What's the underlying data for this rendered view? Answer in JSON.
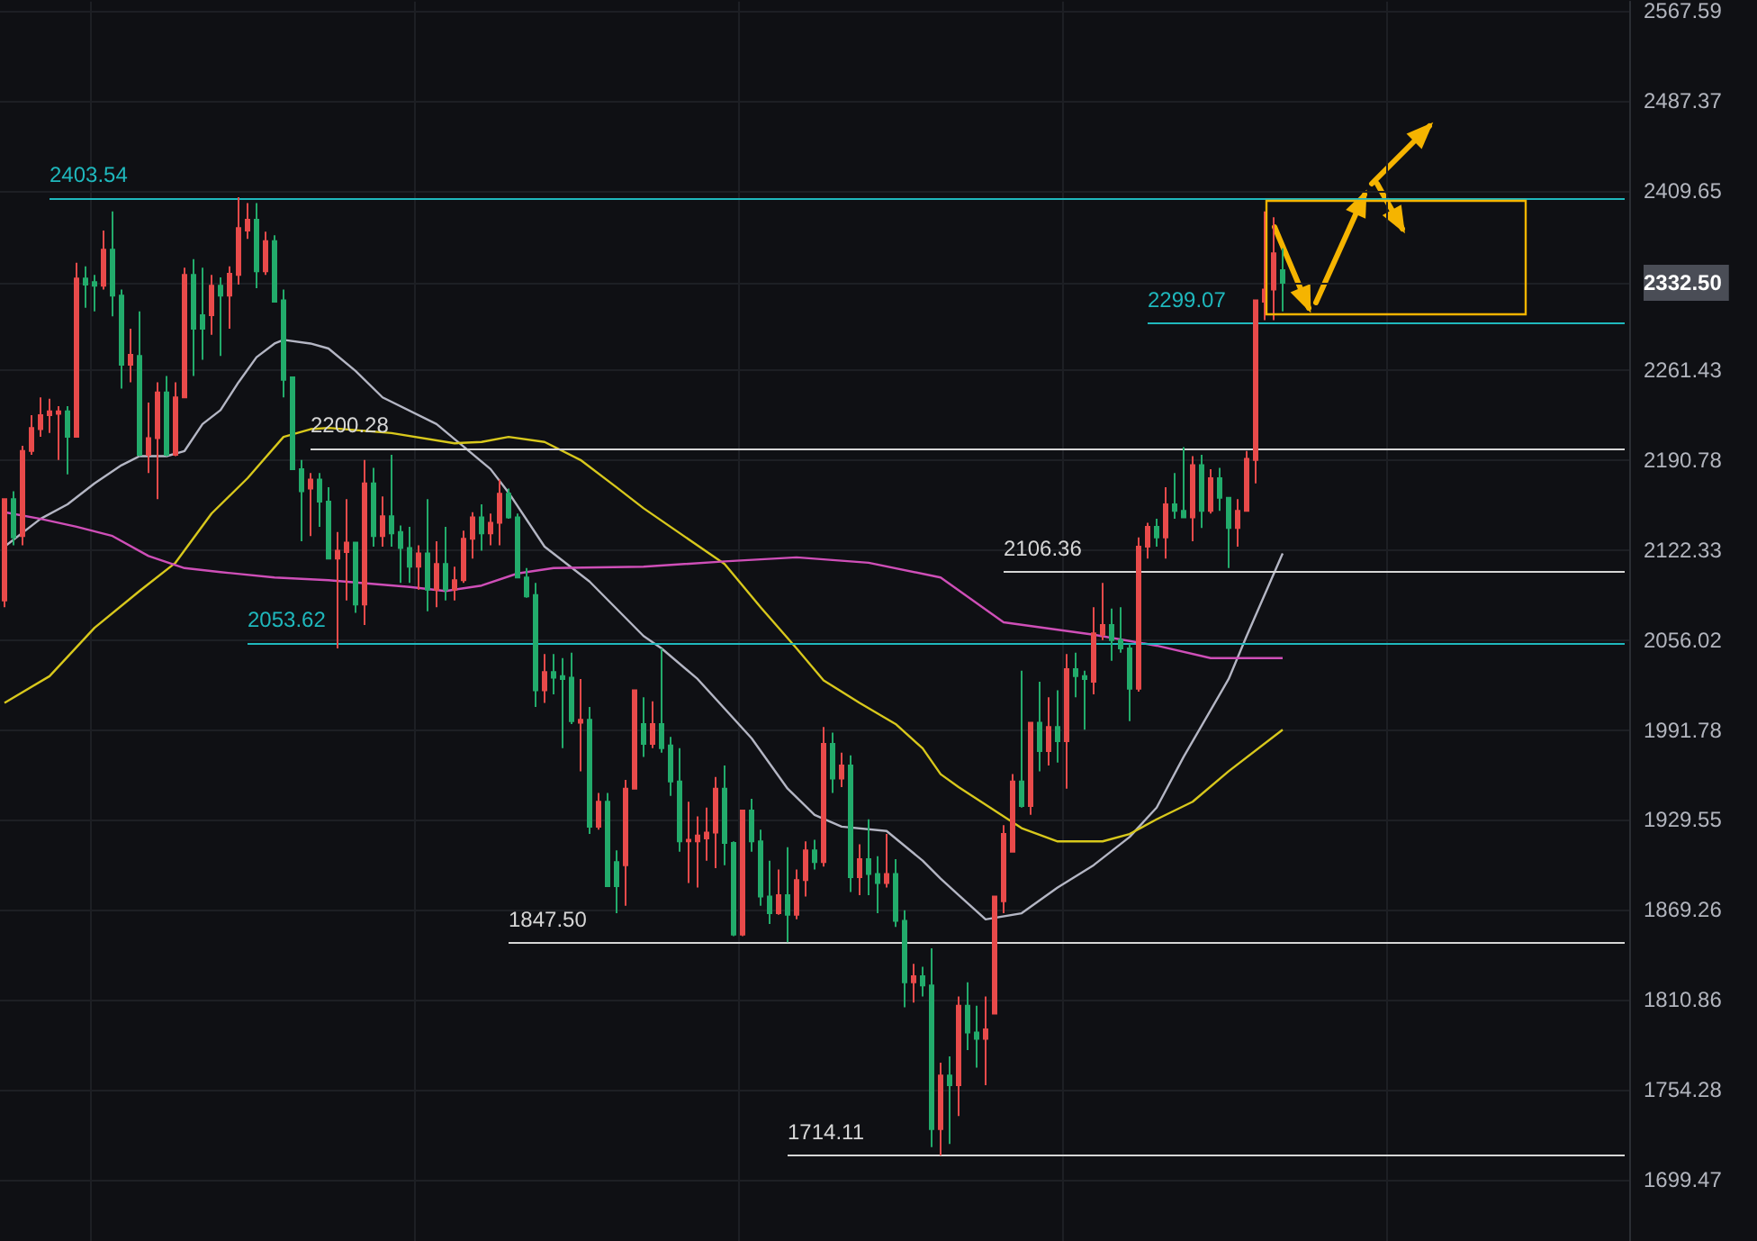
{
  "chart_data": {
    "type": "candlestick",
    "categories": [
      null,
      null,
      null,
      null,
      null,
      null,
      null,
      null,
      null,
      null,
      null,
      null,
      null,
      null,
      null,
      null,
      null,
      null,
      null,
      null,
      null,
      null,
      null,
      null,
      null,
      null,
      null,
      null,
      null,
      null,
      null,
      null,
      null,
      null,
      null,
      null,
      null,
      null,
      null,
      null,
      null,
      null,
      null,
      null,
      null,
      null,
      null,
      null,
      null,
      null,
      null,
      null,
      null,
      null,
      null,
      null,
      null,
      null,
      null,
      null,
      null,
      null,
      null,
      null,
      null,
      null,
      null,
      null,
      null,
      null,
      null,
      null,
      null,
      null,
      null,
      null,
      null,
      null,
      null,
      null,
      null,
      null,
      null,
      null,
      null,
      null,
      null,
      null,
      null,
      null,
      null,
      null,
      null,
      null,
      null,
      null,
      null,
      null,
      null,
      null,
      null,
      null,
      null,
      null,
      null,
      null,
      null,
      null,
      null,
      null,
      null,
      null,
      null,
      null,
      null,
      null,
      null,
      null,
      null,
      null,
      null,
      null,
      null,
      null,
      null,
      null,
      null,
      null,
      null,
      null,
      null,
      null,
      null,
      null,
      null,
      null,
      null,
      null,
      null,
      null,
      null,
      null,
      null,
      null,
      null,
      null,
      null,
      null,
      null,
      null,
      null,
      null,
      null,
      null,
      null,
      null,
      null,
      null,
      null,
      null,
      null,
      null,
      null,
      null,
      null,
      null,
      null,
      null,
      null,
      null,
      null,
      null,
      null,
      null,
      null,
      null,
      null,
      null,
      null,
      null,
      null
    ],
    "ohlc": [
      [
        2085,
        2161,
        2080,
        2161
      ],
      [
        2161,
        2167,
        2126,
        2132
      ],
      [
        2133,
        2202,
        2126,
        2198
      ],
      [
        2198,
        2226,
        2195,
        2216
      ],
      [
        2215,
        2240,
        2209,
        2226
      ],
      [
        2226,
        2239,
        2212,
        2229
      ],
      [
        2227,
        2233,
        2191,
        2229
      ],
      [
        2229,
        2233,
        2180,
        2209
      ],
      [
        2209,
        2349,
        2209,
        2336
      ],
      [
        2336,
        2346,
        2312,
        2331
      ],
      [
        2333,
        2339,
        2309,
        2330
      ],
      [
        2330,
        2376,
        2327,
        2360
      ],
      [
        2360,
        2392,
        2305,
        2322
      ],
      [
        2322,
        2327,
        2247,
        2266
      ],
      [
        2266,
        2295,
        2252,
        2274
      ],
      [
        2273,
        2309,
        2194,
        2195
      ],
      [
        2195,
        2236,
        2181,
        2208
      ],
      [
        2208,
        2252,
        2161,
        2244
      ],
      [
        2244,
        2257,
        2194,
        2195
      ],
      [
        2195,
        2252,
        2194,
        2240
      ],
      [
        2240,
        2345,
        2240,
        2339
      ],
      [
        2339,
        2352,
        2257,
        2295
      ],
      [
        2306,
        2345,
        2270,
        2295
      ],
      [
        2306,
        2339,
        2290,
        2330
      ],
      [
        2330,
        2337,
        2273,
        2322
      ],
      [
        2322,
        2346,
        2295,
        2340
      ],
      [
        2339,
        2404,
        2331,
        2378
      ],
      [
        2376,
        2399,
        2369,
        2385
      ],
      [
        2385,
        2399,
        2328,
        2342
      ],
      [
        2342,
        2375,
        2339,
        2367
      ],
      [
        2367,
        2372,
        2317,
        2317
      ],
      [
        2318,
        2327,
        2240,
        2254
      ],
      [
        2256,
        2256,
        2184,
        2184
      ],
      [
        2184,
        2191,
        2129,
        2167
      ],
      [
        2169,
        2181,
        2133,
        2176
      ],
      [
        2176,
        2181,
        2140,
        2159
      ],
      [
        2159,
        2170,
        2116,
        2116
      ],
      [
        2116,
        2136,
        2050,
        2122
      ],
      [
        2121,
        2161,
        2085,
        2128
      ],
      [
        2128,
        2128,
        2076,
        2082
      ],
      [
        2082,
        2191,
        2067,
        2173
      ],
      [
        2173,
        2185,
        2125,
        2133
      ],
      [
        2133,
        2163,
        2125,
        2148
      ],
      [
        2148,
        2195,
        2125,
        2135
      ],
      [
        2136,
        2141,
        2098,
        2124
      ],
      [
        2124,
        2140,
        2098,
        2110
      ],
      [
        2110,
        2126,
        2093,
        2120
      ],
      [
        2120,
        2161,
        2077,
        2093
      ],
      [
        2093,
        2129,
        2080,
        2112
      ],
      [
        2112,
        2140,
        2085,
        2093
      ],
      [
        2093,
        2110,
        2085,
        2100
      ],
      [
        2100,
        2137,
        2098,
        2131
      ],
      [
        2131,
        2151,
        2116,
        2147
      ],
      [
        2147,
        2157,
        2122,
        2135
      ],
      [
        2135,
        2150,
        2126,
        2143
      ],
      [
        2143,
        2176,
        2126,
        2165
      ],
      [
        2165,
        2169,
        2146,
        2147
      ],
      [
        2147,
        2150,
        2102,
        2102
      ],
      [
        2102,
        2109,
        2087,
        2088
      ],
      [
        2089,
        2098,
        2008,
        2020
      ],
      [
        2020,
        2046,
        2011,
        2033
      ],
      [
        2033,
        2046,
        2017,
        2029
      ],
      [
        2030,
        2043,
        1979,
        2028
      ],
      [
        2029,
        2047,
        1996,
        1998
      ],
      [
        1997,
        2028,
        1963,
        1999
      ],
      [
        1999,
        2008,
        1920,
        1925
      ],
      [
        1925,
        1948,
        1923,
        1942
      ],
      [
        1942,
        1948,
        1885,
        1885
      ],
      [
        1901,
        1909,
        1867,
        1885
      ],
      [
        1899,
        1957,
        1872,
        1951
      ],
      [
        1951,
        2020,
        1951,
        2020
      ],
      [
        1996,
        2015,
        1973,
        1982
      ],
      [
        1982,
        2012,
        1979,
        1996
      ],
      [
        1996,
        2050,
        1976,
        1979
      ],
      [
        1981,
        1987,
        1946,
        1956
      ],
      [
        1956,
        1979,
        1908,
        1915
      ],
      [
        1915,
        1942,
        1887,
        1916
      ],
      [
        1915,
        1932,
        1884,
        1919
      ],
      [
        1917,
        1938,
        1902,
        1921
      ],
      [
        1921,
        1959,
        1897,
        1951
      ],
      [
        1951,
        1967,
        1899,
        1914
      ],
      [
        1914,
        1915,
        1852,
        1853
      ],
      [
        1853,
        1936,
        1852,
        1936
      ],
      [
        1936,
        1944,
        1908,
        1915
      ],
      [
        1915,
        1923,
        1872,
        1878
      ],
      [
        1878,
        1902,
        1860,
        1867
      ],
      [
        1867,
        1896,
        1866,
        1879
      ],
      [
        1879,
        1911,
        1848,
        1866
      ],
      [
        1866,
        1896,
        1863,
        1889
      ],
      [
        1889,
        1915,
        1878,
        1909
      ],
      [
        1909,
        1916,
        1896,
        1901
      ],
      [
        1901,
        1994,
        1898,
        1982
      ],
      [
        1982,
        1990,
        1948,
        1958
      ],
      [
        1958,
        1976,
        1952,
        1967
      ],
      [
        1967,
        1974,
        1881,
        1891
      ],
      [
        1891,
        1913,
        1879,
        1903
      ],
      [
        1903,
        1930,
        1879,
        1893
      ],
      [
        1893,
        1905,
        1867,
        1887
      ],
      [
        1887,
        1920,
        1884,
        1893
      ],
      [
        1893,
        1903,
        1858,
        1862
      ],
      [
        1862,
        1869,
        1806,
        1822
      ],
      [
        1822,
        1834,
        1809,
        1826
      ],
      [
        1826,
        1832,
        1813,
        1820
      ],
      [
        1820,
        1844,
        1719,
        1730
      ],
      [
        1730,
        1771,
        1714,
        1763
      ],
      [
        1763,
        1775,
        1721,
        1757
      ],
      [
        1757,
        1813,
        1738,
        1807
      ],
      [
        1807,
        1822,
        1779,
        1790
      ],
      [
        1790,
        1807,
        1768,
        1786
      ],
      [
        1786,
        1813,
        1757,
        1792
      ],
      [
        1802,
        1878,
        1802,
        1878
      ],
      [
        1875,
        1926,
        1867,
        1920
      ],
      [
        1908,
        1961,
        1908,
        1956
      ],
      [
        1956,
        2034,
        1938,
        1939
      ],
      [
        1939,
        1997,
        1933,
        1997
      ],
      [
        1997,
        2026,
        1963,
        1977
      ],
      [
        1977,
        2015,
        1967,
        1994
      ],
      [
        1994,
        2020,
        1969,
        1984
      ],
      [
        1984,
        2046,
        1951,
        2035
      ],
      [
        2035,
        2047,
        2015,
        2030
      ],
      [
        2030,
        2034,
        1992,
        2028
      ],
      [
        2026,
        2080,
        2017,
        2061
      ],
      [
        2060,
        2098,
        2056,
        2067
      ],
      [
        2067,
        2079,
        2041,
        2056
      ],
      [
        2056,
        2080,
        2047,
        2050
      ],
      [
        2050,
        2053,
        1998,
        2021
      ],
      [
        2021,
        2132,
        2019,
        2125
      ],
      [
        2125,
        2143,
        2116,
        2140
      ],
      [
        2140,
        2146,
        2125,
        2132
      ],
      [
        2132,
        2170,
        2116,
        2157
      ],
      [
        2157,
        2181,
        2146,
        2152
      ],
      [
        2152,
        2201,
        2147,
        2147
      ],
      [
        2147,
        2194,
        2129,
        2187
      ],
      [
        2187,
        2195,
        2139,
        2152
      ],
      [
        2152,
        2184,
        2150,
        2177
      ],
      [
        2177,
        2185,
        2152,
        2162
      ],
      [
        2162,
        2162,
        2109,
        2139
      ],
      [
        2139,
        2161,
        2125,
        2152
      ],
      [
        2152,
        2198,
        2152,
        2192
      ],
      [
        2191,
        2318,
        2173,
        2318
      ],
      [
        2317,
        2392,
        2302,
        2327
      ],
      [
        2327,
        2387,
        2302,
        2357
      ],
      [
        2343,
        2361,
        2309,
        2332.5
      ],
      null,
      null,
      null,
      null,
      null,
      null,
      null,
      null,
      null,
      null,
      null,
      null,
      null,
      null,
      null,
      null,
      null,
      null,
      null,
      null,
      null,
      null,
      null,
      null,
      null,
      null,
      null,
      null,
      null,
      null,
      null,
      null,
      null,
      null,
      null,
      null,
      null,
      null
    ],
    "colors": [
      "#e84a4a",
      "#22ab6b",
      "#e84a4a",
      "#e84a4a",
      "#e84a4a",
      "#e84a4a",
      "#e84a4a",
      "#22ab6b",
      "#e84a4a",
      "#22ab6b",
      "#22ab6b",
      "#e84a4a",
      "#22ab6b",
      "#22ab6b",
      "#e84a4a",
      "#22ab6b",
      "#e84a4a",
      "#e84a4a",
      "#22ab6b",
      "#e84a4a",
      "#e84a4a",
      "#22ab6b",
      "#22ab6b",
      "#e84a4a",
      "#22ab6b",
      "#e84a4a",
      "#e84a4a",
      "#e84a4a",
      "#22ab6b",
      "#e84a4a",
      "#22ab6b",
      "#22ab6b",
      "#22ab6b",
      "#22ab6b",
      "#e84a4a",
      "#22ab6b",
      "#22ab6b",
      "#e84a4a",
      "#e84a4a",
      "#22ab6b",
      "#e84a4a",
      "#22ab6b",
      "#e84a4a",
      "#22ab6b",
      "#22ab6b",
      "#22ab6b",
      "#e84a4a",
      "#22ab6b",
      "#e84a4a",
      "#22ab6b",
      "#e84a4a",
      "#e84a4a",
      "#e84a4a",
      "#22ab6b",
      "#e84a4a",
      "#e84a4a",
      "#22ab6b",
      "#22ab6b",
      "#22ab6b",
      "#22ab6b",
      "#e84a4a",
      "#22ab6b",
      "#22ab6b",
      "#22ab6b",
      "#e84a4a",
      "#22ab6b",
      "#e84a4a",
      "#22ab6b",
      "#22ab6b",
      "#e84a4a",
      "#e84a4a",
      "#22ab6b",
      "#e84a4a",
      "#22ab6b",
      "#22ab6b",
      "#22ab6b",
      "#e84a4a",
      "#e84a4a",
      "#e84a4a",
      "#e84a4a",
      "#22ab6b",
      "#22ab6b",
      "#e84a4a",
      "#22ab6b",
      "#22ab6b",
      "#22ab6b",
      "#e84a4a",
      "#22ab6b",
      "#e84a4a",
      "#e84a4a",
      "#22ab6b",
      "#e84a4a",
      "#22ab6b",
      "#e84a4a",
      "#22ab6b",
      "#e84a4a",
      "#22ab6b",
      "#22ab6b",
      "#e84a4a",
      "#22ab6b",
      "#22ab6b",
      "#e84a4a",
      "#22ab6b",
      "#22ab6b",
      "#e84a4a",
      "#22ab6b",
      "#e84a4a",
      "#22ab6b",
      "#22ab6b",
      "#e84a4a",
      "#e84a4a",
      "#e84a4a",
      "#e84a4a",
      "#22ab6b",
      "#e84a4a",
      "#22ab6b",
      "#e84a4a",
      "#22ab6b",
      "#e84a4a",
      "#22ab6b",
      "#22ab6b",
      "#e84a4a",
      "#e84a4a",
      "#22ab6b",
      "#22ab6b",
      "#22ab6b",
      "#e84a4a",
      "#e84a4a",
      "#22ab6b",
      "#e84a4a",
      "#22ab6b",
      "#22ab6b",
      "#e84a4a",
      "#22ab6b",
      "#e84a4a",
      "#22ab6b",
      "#22ab6b",
      "#e84a4a",
      "#e84a4a",
      "#e84a4a",
      "#e84a4a",
      "#e84a4a",
      "#22ab6b",
      null,
      null,
      null,
      null,
      null,
      null,
      null,
      null,
      null,
      null,
      null,
      null,
      null,
      null,
      null,
      null,
      null,
      null,
      null,
      null,
      null,
      null,
      null,
      null,
      null,
      null,
      null,
      null,
      null,
      null,
      null,
      null,
      null,
      null,
      null,
      null,
      null,
      null
    ],
    "series": [
      {
        "type": "line",
        "color": "#b4b6c4",
        "values": [
          2125,
          null,
          null,
          null,
          2146,
          null,
          null,
          2157,
          null,
          null,
          2173,
          null,
          null,
          2187,
          null,
          2194,
          null,
          null,
          2194,
          null,
          2198,
          null,
          2219,
          null,
          2230,
          null,
          2252,
          null,
          2272,
          null,
          2283,
          2286,
          null,
          null,
          2283,
          null,
          2279,
          null,
          null,
          2261,
          null,
          null,
          2240,
          null,
          null,
          null,
          null,
          null,
          2219,
          null,
          null,
          null,
          null,
          null,
          2184,
          null,
          2166,
          null,
          null,
          null,
          2125,
          null,
          null,
          null,
          null,
          2099,
          null,
          null,
          null,
          null,
          null,
          2059,
          null,
          2050,
          null,
          null,
          null,
          2028,
          null,
          null,
          null,
          null,
          null,
          1986,
          null,
          null,
          null,
          1951,
          null,
          null,
          1933,
          null,
          null,
          1925,
          null,
          null,
          null,
          null,
          1922,
          null,
          null,
          null,
          1902,
          null,
          1890,
          null,
          1879,
          null,
          null,
          1863,
          null,
          null,
          null,
          1867,
          null,
          null,
          null,
          1884,
          null,
          null,
          null,
          1899,
          null,
          null,
          null,
          1918,
          null,
          null,
          1938,
          null,
          null,
          1973,
          null,
          null,
          null,
          null,
          2028,
          null,
          2059,
          null,
          null,
          null,
          2120,
          null,
          null,
          null,
          null,
          null,
          null,
          null,
          null,
          null,
          null,
          null,
          null,
          null,
          null,
          null,
          null,
          null,
          null,
          null,
          null,
          null,
          null,
          null,
          null,
          null,
          null,
          null,
          null,
          null,
          null,
          null,
          null,
          null,
          null,
          null,
          null,
          null,
          null
        ]
      },
      {
        "type": "line",
        "color": "#d8c81c",
        "values": [
          2011,
          null,
          null,
          null,
          null,
          2030,
          null,
          null,
          null,
          null,
          2065,
          null,
          null,
          null,
          null,
          2092,
          null,
          null,
          null,
          2113,
          null,
          null,
          null,
          2150,
          null,
          null,
          null,
          2177,
          null,
          null,
          null,
          2209,
          null,
          null,
          2215,
          null,
          2216,
          null,
          null,
          null,
          null,
          null,
          null,
          2212,
          null,
          null,
          null,
          null,
          null,
          null,
          2204,
          null,
          null,
          2205,
          null,
          null,
          2209,
          null,
          null,
          null,
          2205,
          null,
          null,
          null,
          2191,
          null,
          null,
          null,
          2170,
          null,
          null,
          2154,
          null,
          null,
          null,
          null,
          null,
          null,
          null,
          null,
          2112,
          null,
          null,
          null,
          2080,
          null,
          null,
          null,
          2050,
          null,
          null,
          2027,
          null,
          null,
          null,
          2011,
          null,
          null,
          null,
          1996,
          null,
          null,
          1979,
          null,
          1961,
          null,
          1952,
          null,
          null,
          1940,
          null,
          null,
          null,
          1924,
          null,
          null,
          null,
          1915,
          null,
          null,
          null,
          null,
          1915,
          null,
          null,
          1920,
          null,
          null,
          1930,
          null,
          null,
          null,
          1942,
          null,
          null,
          null,
          1963,
          null,
          null,
          null,
          null,
          null,
          1992,
          null,
          null,
          null,
          null,
          null,
          null,
          null,
          null,
          null,
          null,
          null,
          null,
          null,
          null,
          null,
          null,
          null,
          null,
          null,
          null,
          null,
          null,
          null,
          null,
          null,
          null,
          null,
          null,
          null,
          null,
          null,
          null,
          null,
          null,
          null,
          null,
          null,
          null
        ]
      },
      {
        "type": "line",
        "color": "#cf4fb8",
        "values": [
          2151,
          null,
          null,
          null,
          2146,
          null,
          null,
          null,
          2140,
          null,
          null,
          null,
          2133,
          null,
          null,
          null,
          2118,
          null,
          null,
          null,
          2109,
          null,
          null,
          null,
          2106,
          null,
          null,
          null,
          null,
          null,
          2102,
          null,
          null,
          null,
          null,
          null,
          2100,
          null,
          null,
          null,
          null,
          null,
          null,
          null,
          null,
          2095,
          null,
          null,
          null,
          2092,
          null,
          null,
          null,
          2096,
          null,
          null,
          null,
          2105,
          null,
          null,
          null,
          2109,
          null,
          null,
          null,
          null,
          null,
          null,
          null,
          null,
          null,
          2110,
          null,
          null,
          null,
          null,
          null,
          null,
          null,
          null,
          2114,
          null,
          null,
          null,
          null,
          null,
          null,
          null,
          2117,
          null,
          null,
          null,
          null,
          null,
          null,
          null,
          2113,
          null,
          null,
          null,
          null,
          null,
          null,
          null,
          2102,
          null,
          null,
          null,
          null,
          null,
          null,
          2069,
          null,
          null,
          null,
          null,
          null,
          null,
          null,
          null,
          null,
          2060,
          null,
          null,
          null,
          null,
          null,
          null,
          2052,
          null,
          null,
          null,
          null,
          null,
          2043,
          null,
          null,
          null,
          null,
          null,
          null,
          null,
          2043,
          null,
          null,
          null,
          null,
          null,
          null,
          null,
          null,
          null,
          null,
          null,
          null,
          null,
          null,
          null,
          null,
          null,
          null,
          null,
          null,
          null,
          null,
          null,
          null,
          null,
          null,
          null,
          null,
          null,
          null,
          null,
          null,
          null,
          null,
          null,
          null,
          null,
          null
        ]
      }
    ],
    "log": true,
    "ylim": [
      1663,
      2576
    ],
    "yticks": [
      2567.59,
      2487.37,
      2409.65,
      {
        "value": 2332.5,
        "label": "2332.50"
      },
      2261.43,
      2190.78,
      2122.33,
      2056.02,
      1991.78,
      1929.55,
      1869.26,
      1810.86,
      1754.28,
      1699.47
    ],
    "tick_labels": "y",
    "grid": true,
    "ref_lines": [
      {
        "axis": "y",
        "value": 2403.54,
        "label": "2403.54",
        "color": "#1fb8bd"
      },
      {
        "axis": "y",
        "value": 2299.07,
        "label": "2299.07",
        "color": "#1fb8bd"
      },
      {
        "axis": "y",
        "value": 2200.28,
        "label": "2200.28",
        "color": "#d6d6d6"
      },
      {
        "axis": "y",
        "value": 2106.36,
        "label": "2106.36",
        "color": "#d6d6d6"
      },
      {
        "axis": "y",
        "value": 2053.62,
        "label": "2053.62",
        "color": "#1fb8bd"
      },
      {
        "axis": "y",
        "value": 1847.5,
        "label": "1847.50",
        "color": "#d6d6d6"
      },
      {
        "axis": "y",
        "value": 1714.11,
        "label": "1714.11",
        "color": "#d6d6d6"
      }
    ]
  }
}
